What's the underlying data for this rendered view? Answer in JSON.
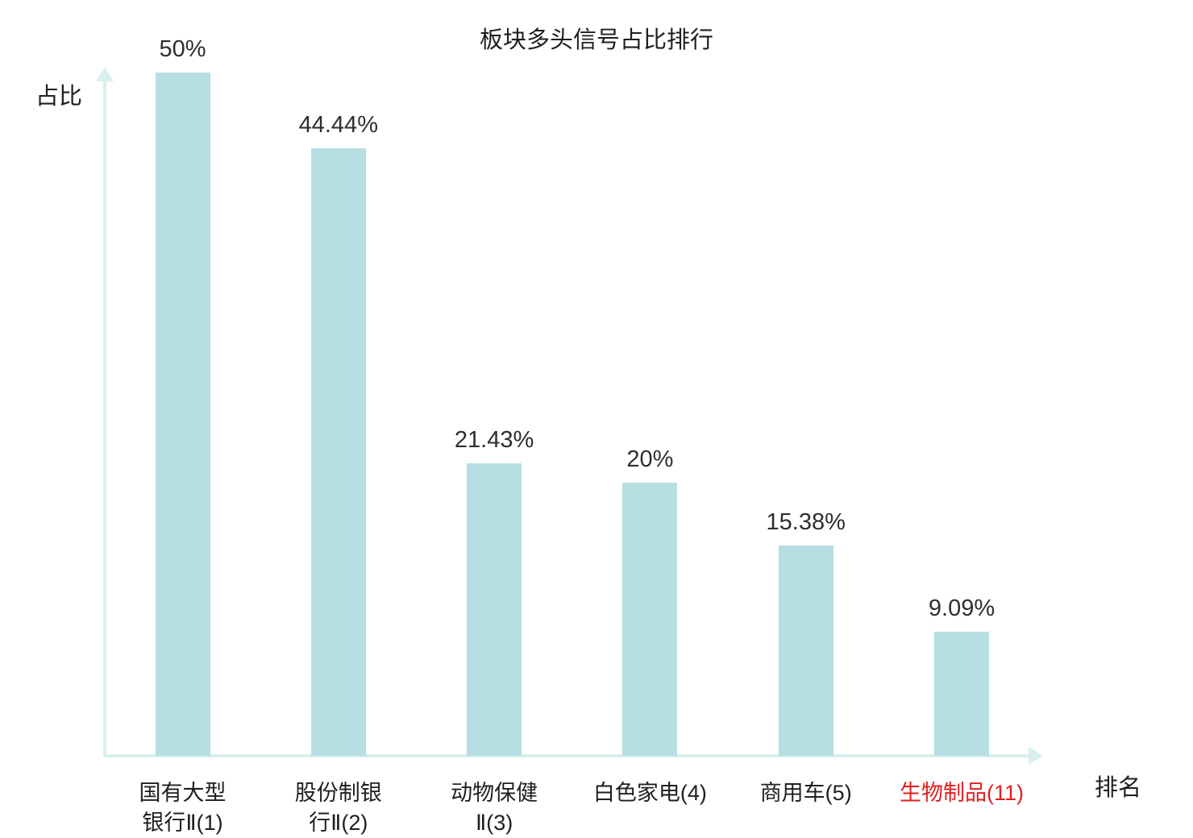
{
  "chart_data": {
    "type": "bar",
    "title": "板块多头信号占比排行",
    "ylabel": "占比",
    "xlabel": "排名",
    "categories": [
      "国有大型银行Ⅱ(1)",
      "股份制银行Ⅱ(2)",
      "动物保健Ⅱ(3)",
      "白色家电(4)",
      "商用车(5)",
      "生物制品(11)"
    ],
    "category_lines": [
      [
        "国有大型",
        "银行Ⅱ(1)"
      ],
      [
        "股份制银",
        "行Ⅱ(2)"
      ],
      [
        "动物保健",
        "Ⅱ(3)"
      ],
      [
        "白色家电(4)"
      ],
      [
        "商用车(5)"
      ],
      [
        "生物制品(11)"
      ]
    ],
    "values": [
      50,
      44.44,
      21.43,
      20,
      15.38,
      9.09
    ],
    "value_labels": [
      "50%",
      "44.44%",
      "21.43%",
      "20%",
      "15.38%",
      "9.09%"
    ],
    "highlight_index": 5,
    "ylim": [
      0,
      50
    ],
    "grid": false,
    "legend": "none",
    "colors": {
      "bar": "#b7dee2",
      "axis": "#d8efed",
      "value_text": "#2e2e2e",
      "category_text": "#1f1f1f",
      "highlight": "#e02020"
    }
  }
}
